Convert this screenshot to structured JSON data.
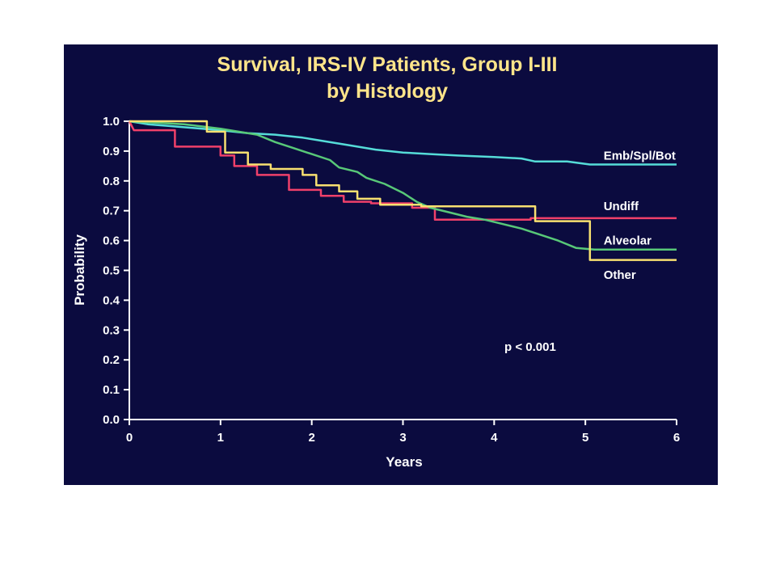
{
  "chart_data": {
    "type": "line",
    "title": [
      "Survival, IRS-IV Patients, Group I-III",
      "by Histology"
    ],
    "xlabel": "Years",
    "ylabel": "Probability",
    "xlim": [
      0,
      6
    ],
    "ylim": [
      0,
      1
    ],
    "x_ticks": [
      "0",
      "1",
      "2",
      "3",
      "4",
      "5",
      "6"
    ],
    "y_ticks": [
      "0.0",
      "0.1",
      "0.2",
      "0.3",
      "0.4",
      "0.5",
      "0.6",
      "0.7",
      "0.8",
      "0.9",
      "1.0"
    ],
    "annotation": "p < 0.001",
    "colors": {
      "background": "#0b0b3f",
      "title": "#ffe58a",
      "axes": "#ffffff"
    },
    "series": [
      {
        "name": "Emb/Spl/Bot",
        "color": "#55dcd8",
        "points": [
          [
            0,
            1.0
          ],
          [
            0.2,
            0.99
          ],
          [
            0.4,
            0.985
          ],
          [
            0.6,
            0.98
          ],
          [
            0.8,
            0.975
          ],
          [
            1.0,
            0.97
          ],
          [
            1.3,
            0.96
          ],
          [
            1.6,
            0.955
          ],
          [
            1.9,
            0.945
          ],
          [
            2.1,
            0.935
          ],
          [
            2.4,
            0.92
          ],
          [
            2.7,
            0.905
          ],
          [
            3.0,
            0.895
          ],
          [
            3.3,
            0.89
          ],
          [
            3.6,
            0.885
          ],
          [
            4.0,
            0.88
          ],
          [
            4.3,
            0.875
          ],
          [
            4.45,
            0.865
          ],
          [
            4.8,
            0.865
          ],
          [
            5.05,
            0.855
          ],
          [
            6.0,
            0.855
          ]
        ]
      },
      {
        "name": "Undiff",
        "color": "#f0406a",
        "points": [
          [
            0,
            1.0
          ],
          [
            0.05,
            0.97
          ],
          [
            0.5,
            0.97
          ],
          [
            0.5,
            0.915
          ],
          [
            1.0,
            0.915
          ],
          [
            1.0,
            0.885
          ],
          [
            1.15,
            0.885
          ],
          [
            1.15,
            0.85
          ],
          [
            1.4,
            0.85
          ],
          [
            1.4,
            0.82
          ],
          [
            1.75,
            0.82
          ],
          [
            1.75,
            0.77
          ],
          [
            2.1,
            0.77
          ],
          [
            2.1,
            0.75
          ],
          [
            2.35,
            0.75
          ],
          [
            2.35,
            0.73
          ],
          [
            2.65,
            0.73
          ],
          [
            2.65,
            0.725
          ],
          [
            3.1,
            0.725
          ],
          [
            3.1,
            0.71
          ],
          [
            3.35,
            0.71
          ],
          [
            3.35,
            0.67
          ],
          [
            4.4,
            0.67
          ],
          [
            4.4,
            0.675
          ],
          [
            6.0,
            0.675
          ]
        ]
      },
      {
        "name": "Alveolar",
        "color": "#58c878",
        "points": [
          [
            0,
            1.0
          ],
          [
            0.6,
            0.99
          ],
          [
            1.0,
            0.975
          ],
          [
            1.4,
            0.955
          ],
          [
            1.6,
            0.93
          ],
          [
            1.8,
            0.91
          ],
          [
            2.0,
            0.89
          ],
          [
            2.2,
            0.87
          ],
          [
            2.3,
            0.845
          ],
          [
            2.5,
            0.83
          ],
          [
            2.6,
            0.81
          ],
          [
            2.8,
            0.79
          ],
          [
            3.0,
            0.76
          ],
          [
            3.15,
            0.73
          ],
          [
            3.3,
            0.71
          ],
          [
            3.5,
            0.695
          ],
          [
            3.7,
            0.68
          ],
          [
            3.9,
            0.67
          ],
          [
            4.1,
            0.655
          ],
          [
            4.3,
            0.64
          ],
          [
            4.5,
            0.62
          ],
          [
            4.7,
            0.6
          ],
          [
            4.9,
            0.575
          ],
          [
            5.1,
            0.57
          ],
          [
            6.0,
            0.57
          ]
        ]
      },
      {
        "name": "Other",
        "color": "#f8e070",
        "points": [
          [
            0,
            1.0
          ],
          [
            0.85,
            1.0
          ],
          [
            0.85,
            0.965
          ],
          [
            1.05,
            0.965
          ],
          [
            1.05,
            0.895
          ],
          [
            1.3,
            0.895
          ],
          [
            1.3,
            0.855
          ],
          [
            1.55,
            0.855
          ],
          [
            1.55,
            0.84
          ],
          [
            1.9,
            0.84
          ],
          [
            1.9,
            0.82
          ],
          [
            2.05,
            0.82
          ],
          [
            2.05,
            0.785
          ],
          [
            2.3,
            0.785
          ],
          [
            2.3,
            0.765
          ],
          [
            2.5,
            0.765
          ],
          [
            2.5,
            0.74
          ],
          [
            2.75,
            0.74
          ],
          [
            2.75,
            0.72
          ],
          [
            3.2,
            0.72
          ],
          [
            3.2,
            0.715
          ],
          [
            4.45,
            0.715
          ],
          [
            4.45,
            0.665
          ],
          [
            5.05,
            0.665
          ],
          [
            5.05,
            0.535
          ],
          [
            6.0,
            0.535
          ]
        ]
      }
    ]
  }
}
